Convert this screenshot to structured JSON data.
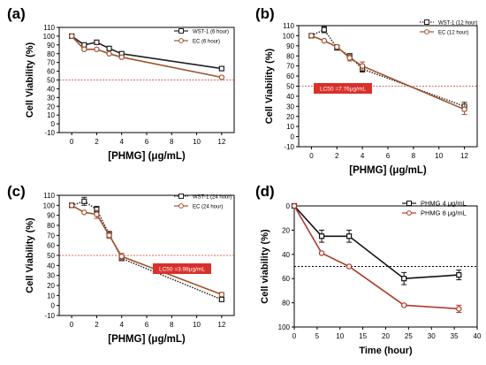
{
  "chart_data": [
    {
      "type": "line",
      "panel_label": "(a)",
      "xlabel": "[PHMG] (μg/mL)",
      "ylabel": "Cell Viability (%)",
      "xlim": [
        -1,
        13
      ],
      "ylim": [
        -10,
        110
      ],
      "xticks": [
        "0",
        "2",
        "4",
        "6",
        "8",
        "10",
        "12"
      ],
      "yticks": [
        "-10",
        "0",
        "10",
        "20",
        "30",
        "40",
        "50",
        "60",
        "70",
        "80",
        "90",
        "100",
        "110"
      ],
      "legend_position": "top-right",
      "reference_line": 50,
      "series": [
        {
          "name": "WST-1 (6 hour)",
          "color": "#222222",
          "marker": "square-open",
          "line": "solid",
          "x": [
            0,
            1,
            2,
            3,
            4,
            12
          ],
          "y": [
            100,
            90,
            93,
            86,
            80,
            63
          ]
        },
        {
          "name": "EC (6 hour)",
          "color": "#a0522d",
          "marker": "circle-open",
          "line": "solid",
          "x": [
            0,
            1,
            2,
            3,
            4,
            12
          ],
          "y": [
            100,
            85,
            85,
            80,
            76,
            53
          ]
        }
      ]
    },
    {
      "type": "line",
      "panel_label": "(b)",
      "xlabel": "[PHMG] (μg/mL)",
      "ylabel": "Cell Viability (%)",
      "xlim": [
        -1,
        13
      ],
      "ylim": [
        -10,
        110
      ],
      "xticks": [
        "0",
        "2",
        "4",
        "6",
        "8",
        "10",
        "12"
      ],
      "yticks": [
        "-10",
        "0",
        "10",
        "20",
        "30",
        "40",
        "50",
        "60",
        "70",
        "80",
        "90",
        "100",
        "110"
      ],
      "legend_position": "top-right",
      "reference_line": 50,
      "annotation": "LC50 =7.76μg/mL",
      "series": [
        {
          "name": "WST-1 (12 hour)",
          "color": "#222222",
          "marker": "square-open",
          "line": "dotted",
          "x": [
            0,
            1,
            2,
            3,
            4,
            12
          ],
          "y": [
            100,
            106,
            88,
            80,
            67,
            30
          ],
          "err": [
            0,
            3,
            2,
            2,
            3,
            4
          ]
        },
        {
          "name": "EC (12 hour)",
          "color": "#a0522d",
          "marker": "circle-open",
          "line": "solid",
          "x": [
            0,
            1,
            2,
            3,
            4,
            12
          ],
          "y": [
            100,
            95,
            89,
            78,
            70,
            27
          ],
          "err": [
            0,
            0,
            2,
            3,
            4,
            5
          ]
        }
      ]
    },
    {
      "type": "line",
      "panel_label": "(c)",
      "xlabel": "[PHMG] (μg/mL)",
      "ylabel": "Cell Viability (%)",
      "xlim": [
        -1,
        13
      ],
      "ylim": [
        -10,
        110
      ],
      "xticks": [
        "0",
        "2",
        "4",
        "6",
        "8",
        "10",
        "12"
      ],
      "yticks": [
        "-10",
        "0",
        "10",
        "20",
        "30",
        "40",
        "50",
        "60",
        "70",
        "80",
        "90",
        "100",
        "110"
      ],
      "legend_position": "top-right",
      "reference_line": 50,
      "annotation": "LC50 =3.98μg/mL",
      "series": [
        {
          "name": "WST-1 (24 hour)",
          "color": "#222222",
          "marker": "square-open",
          "line": "dotted",
          "x": [
            0,
            1,
            2,
            3,
            4,
            12
          ],
          "y": [
            100,
            104,
            96,
            71,
            47,
            6
          ],
          "err": [
            0,
            4,
            3,
            3,
            2,
            1
          ]
        },
        {
          "name": "EC (24 hour)",
          "color": "#a0522d",
          "marker": "circle-open",
          "line": "solid",
          "x": [
            0,
            1,
            2,
            3,
            4,
            12
          ],
          "y": [
            100,
            93,
            91,
            70,
            49,
            11
          ],
          "err": [
            0,
            0,
            4,
            3,
            3,
            2
          ]
        }
      ]
    },
    {
      "type": "line",
      "panel_label": "(d)",
      "xlabel": "Time (hour)",
      "ylabel": "Cell viability (%)",
      "xlim": [
        0,
        40
      ],
      "ylim": [
        100,
        0
      ],
      "y_inverted": true,
      "xticks": [
        "0",
        "5",
        "10",
        "15",
        "20",
        "25",
        "30",
        "35",
        "40"
      ],
      "yticks": [
        "0",
        "20",
        "40",
        "60",
        "80",
        "100"
      ],
      "legend_position": "top-right",
      "reference_line": 50,
      "series": [
        {
          "name": "PHMG 4 μg/mL",
          "color": "#111111",
          "marker": "square-open",
          "line": "solid",
          "x": [
            0,
            6,
            12,
            24,
            36
          ],
          "y": [
            0,
            25,
            25,
            60,
            57
          ],
          "err": [
            0,
            5,
            5,
            5,
            4
          ]
        },
        {
          "name": "PHMG 8 μg/mL",
          "color": "#b03a2e",
          "marker": "circle-open",
          "line": "solid",
          "x": [
            0,
            6,
            12,
            24,
            36
          ],
          "y": [
            0,
            39,
            50,
            82,
            85
          ],
          "err": [
            0,
            1,
            1,
            1,
            3
          ]
        }
      ]
    }
  ]
}
